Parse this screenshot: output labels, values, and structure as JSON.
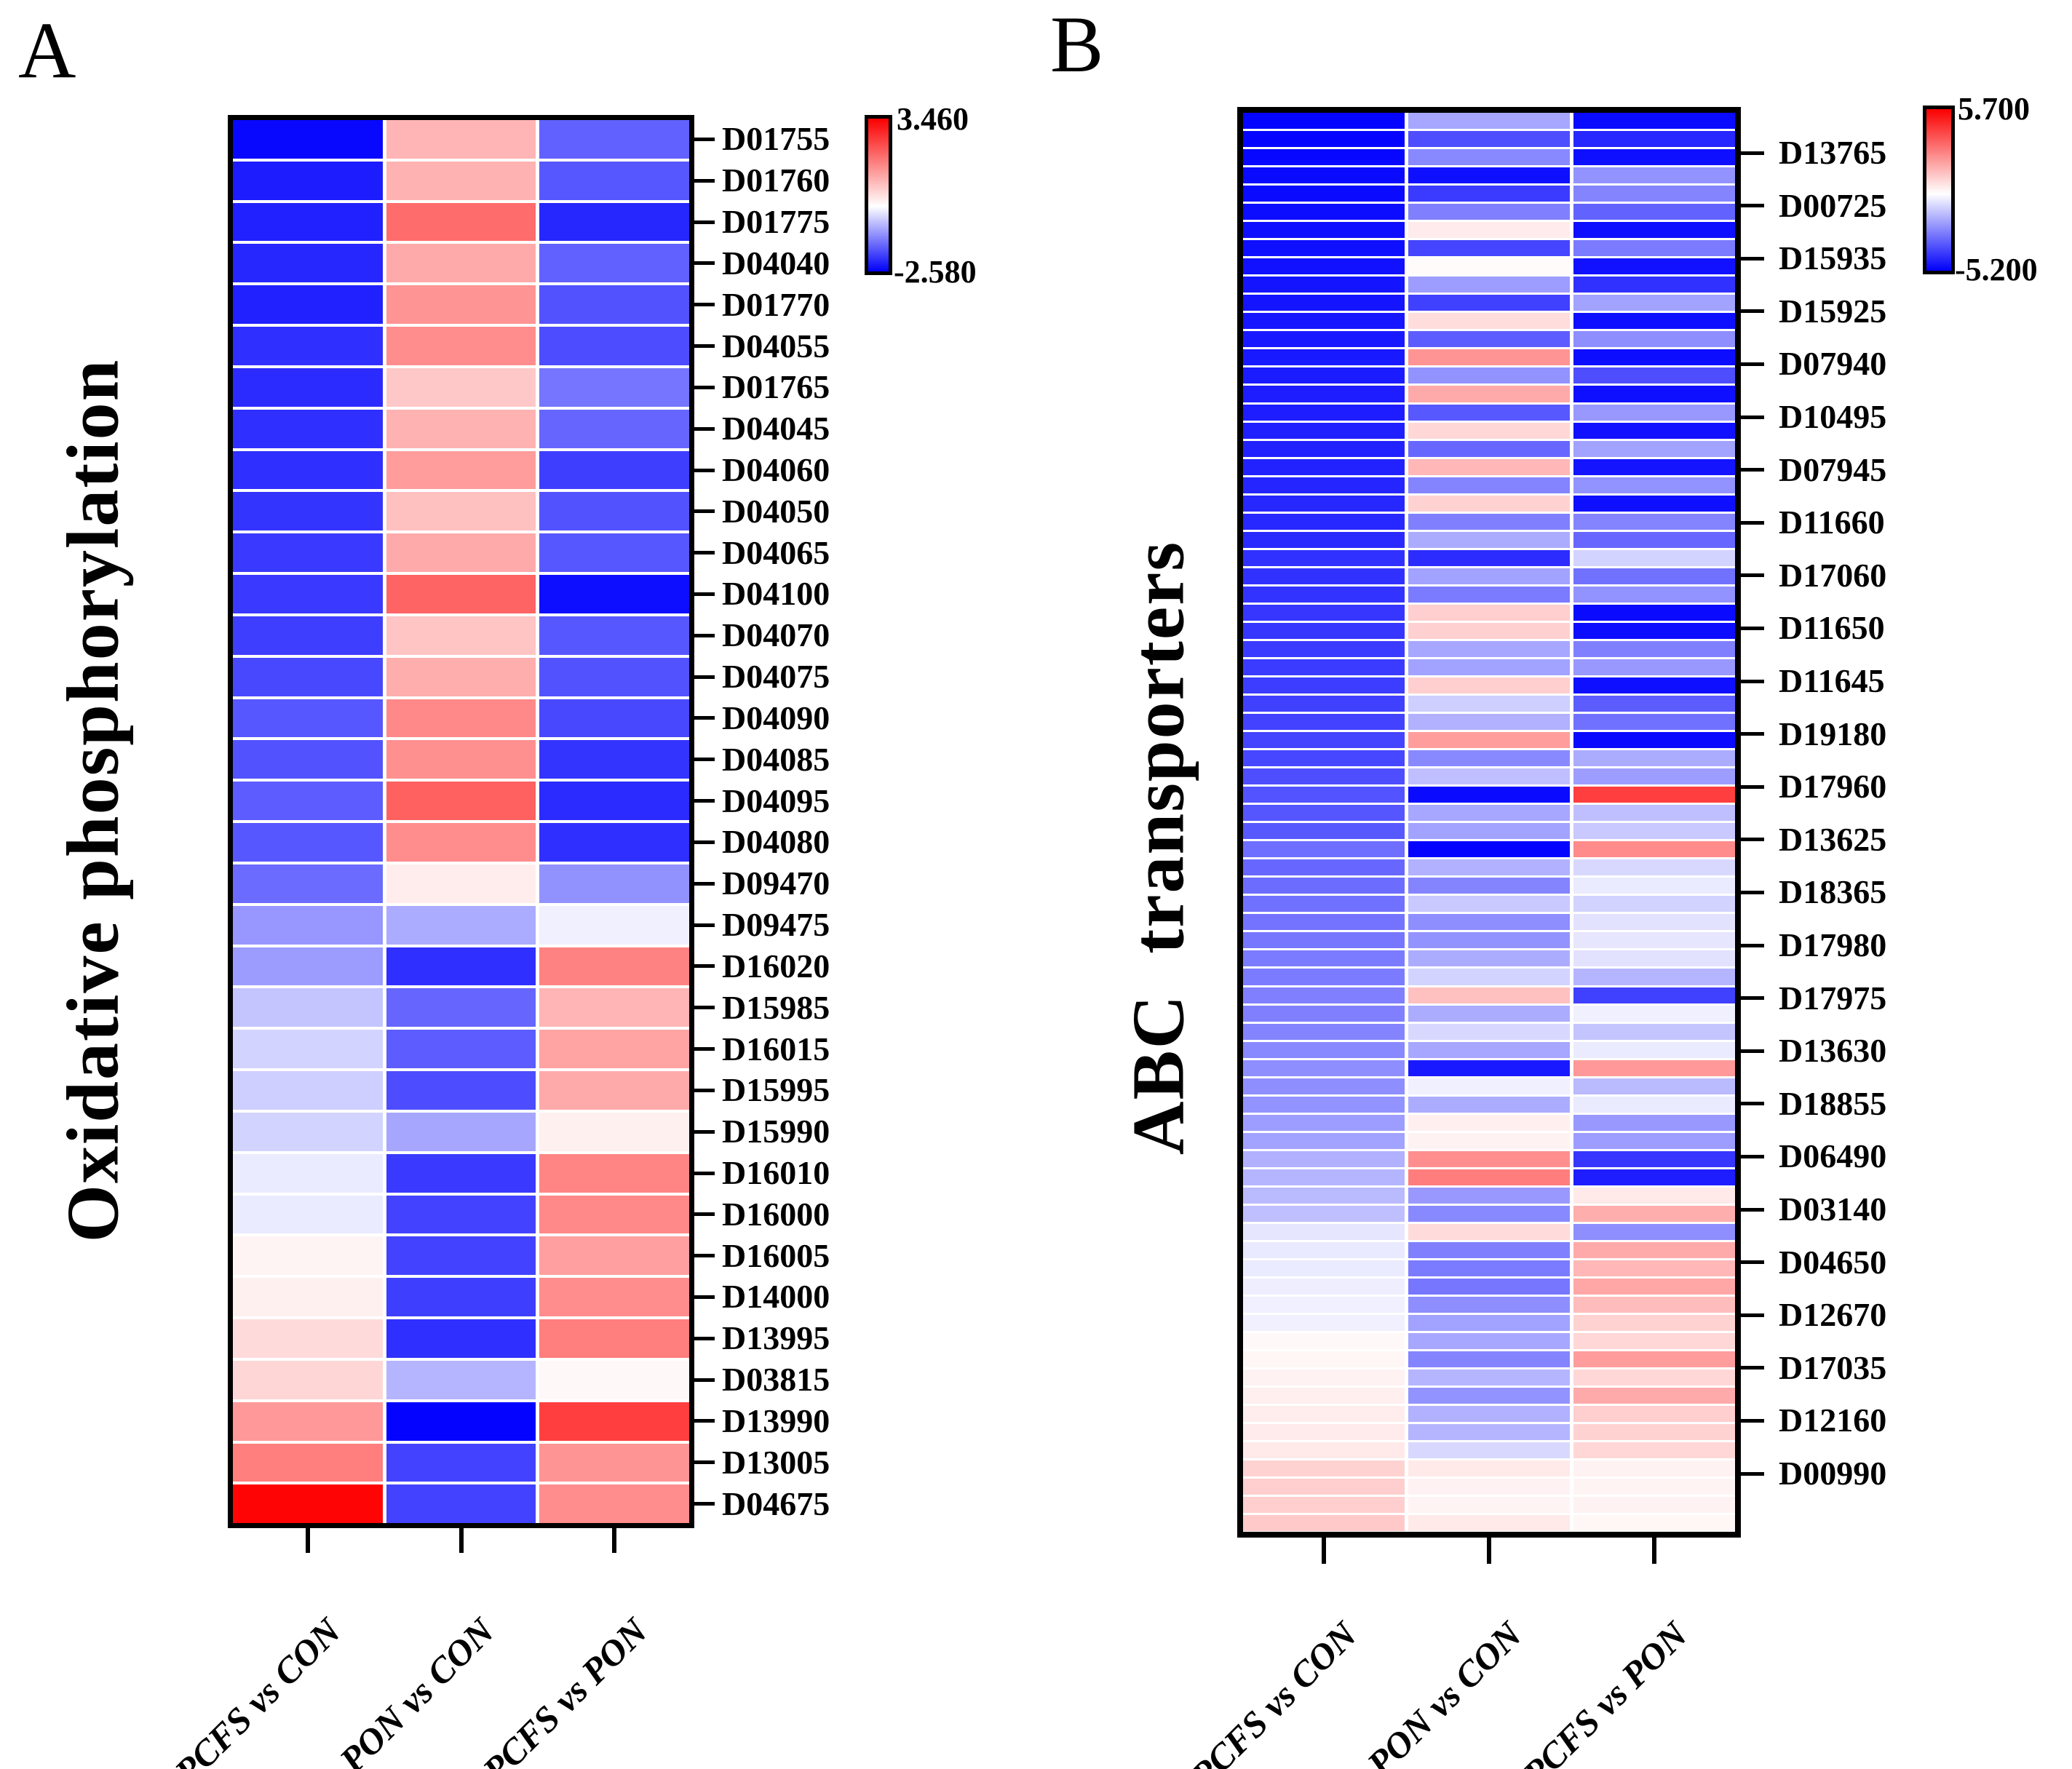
{
  "chart_data": [
    {
      "type": "heatmap",
      "panel_label": "A",
      "title": "Oxidative phosphorylation",
      "x_categories": [
        "PCFS vs CON",
        "PON vs CON",
        "PCFS vs PON"
      ],
      "y_categories": [
        "D01755",
        "D01760",
        "D01775",
        "D04040",
        "D01770",
        "D04055",
        "D01765",
        "D04045",
        "D04060",
        "D04050",
        "D04065",
        "D04100",
        "D04070",
        "D04075",
        "D04090",
        "D04085",
        "D04095",
        "D04080",
        "D09470",
        "D09475",
        "D16020",
        "D15985",
        "D16015",
        "D15995",
        "D15990",
        "D16010",
        "D16000",
        "D16005",
        "D14000",
        "D13995",
        "D03815",
        "D13990",
        "D13005",
        "D04675"
      ],
      "label_mode": "per-row",
      "values": [
        [
          -2.5,
          1.0,
          -1.6
        ],
        [
          -2.3,
          1.05,
          -1.7
        ],
        [
          -2.25,
          2.0,
          -2.2
        ],
        [
          -2.2,
          1.15,
          -1.6
        ],
        [
          -2.25,
          1.45,
          -1.75
        ],
        [
          -2.1,
          1.55,
          -1.8
        ],
        [
          -2.15,
          0.75,
          -1.4
        ],
        [
          -2.1,
          1.05,
          -1.55
        ],
        [
          -2.1,
          1.35,
          -1.95
        ],
        [
          -2.05,
          0.85,
          -1.75
        ],
        [
          -2.0,
          1.15,
          -1.7
        ],
        [
          -2.0,
          2.1,
          -2.45
        ],
        [
          -1.95,
          0.8,
          -1.7
        ],
        [
          -1.85,
          1.1,
          -1.75
        ],
        [
          -1.7,
          1.6,
          -1.85
        ],
        [
          -1.75,
          1.5,
          -2.05
        ],
        [
          -1.65,
          2.15,
          -2.15
        ],
        [
          -1.7,
          1.55,
          -2.1
        ],
        [
          -1.5,
          0.25,
          -1.1
        ],
        [
          -1.05,
          -0.85,
          -0.15
        ],
        [
          -1.0,
          -2.1,
          1.7
        ],
        [
          -0.6,
          -1.55,
          1.0
        ],
        [
          -0.45,
          -1.65,
          1.25
        ],
        [
          -0.5,
          -1.8,
          1.15
        ],
        [
          -0.45,
          -0.9,
          0.2
        ],
        [
          -0.2,
          -2.0,
          1.65
        ],
        [
          -0.2,
          -1.9,
          1.6
        ],
        [
          0.15,
          -1.9,
          1.3
        ],
        [
          0.2,
          -1.95,
          1.55
        ],
        [
          0.5,
          -2.1,
          1.75
        ],
        [
          0.55,
          -0.75,
          0.1
        ],
        [
          1.4,
          -2.55,
          2.6
        ],
        [
          1.75,
          -1.9,
          1.45
        ],
        [
          3.4,
          -1.9,
          1.55
        ]
      ],
      "colorbar": {
        "max": 3.46,
        "min": -2.58,
        "max_label": "3.460",
        "min_label": "-2.580",
        "top_color": "#fa0000",
        "mid_color": "#ffffff",
        "bottom_color": "#0000fa"
      },
      "legend_position": "top-right",
      "grid": false
    },
    {
      "type": "heatmap",
      "panel_label": "B",
      "title": "ABC  transporters",
      "x_categories": [
        "PCFS vs CON",
        "PON vs CON",
        "PCFS vs PON"
      ],
      "y_categories": [
        "D13765",
        "D00725",
        "D15935",
        "D15925",
        "D07940",
        "D10495",
        "D07945",
        "D11660",
        "D17060",
        "D11650",
        "D11645",
        "D19180",
        "D17960",
        "D13625",
        "D18365",
        "D17980",
        "D17975",
        "D13630",
        "D18855",
        "D06490",
        "D03140",
        "D04650",
        "D12670",
        "D17035",
        "D12160",
        "D00990"
      ],
      "label_mode": "sparse-every-3rd-row",
      "values": [
        [
          -5.1,
          -1.8,
          -5.0
        ],
        [
          -5.1,
          -3.6,
          -4.4
        ],
        [
          -5.05,
          -2.4,
          -4.9
        ],
        [
          -5.0,
          -4.9,
          -2.2
        ],
        [
          -5.0,
          -4.0,
          -2.5
        ],
        [
          -4.95,
          -2.6,
          -3.2
        ],
        [
          -4.9,
          0.45,
          -4.9
        ],
        [
          -4.9,
          -3.8,
          -2.7
        ],
        [
          -4.85,
          0.1,
          -4.85
        ],
        [
          -4.8,
          -2.0,
          -4.2
        ],
        [
          -4.8,
          -3.9,
          -1.9
        ],
        [
          -4.75,
          0.75,
          -4.9
        ],
        [
          -4.7,
          -3.3,
          -2.3
        ],
        [
          -4.7,
          2.4,
          -4.95
        ],
        [
          -4.65,
          -2.2,
          -3.6
        ],
        [
          -4.6,
          1.9,
          -4.9
        ],
        [
          -4.6,
          -3.4,
          -2.1
        ],
        [
          -4.55,
          0.9,
          -4.85
        ],
        [
          -4.5,
          -3.1,
          -1.9
        ],
        [
          -4.5,
          1.6,
          -4.8
        ],
        [
          -4.45,
          -2.5,
          -2.2
        ],
        [
          -4.4,
          1.0,
          -4.9
        ],
        [
          -4.4,
          -2.6,
          -2.5
        ],
        [
          -4.35,
          -1.7,
          -3.1
        ],
        [
          -4.2,
          -4.3,
          -0.9
        ],
        [
          -4.2,
          -1.9,
          -2.9
        ],
        [
          -4.15,
          -2.7,
          -2.2
        ],
        [
          -4.1,
          1.1,
          -5.0
        ],
        [
          -4.1,
          1.05,
          -4.95
        ],
        [
          -4.0,
          -1.8,
          -2.6
        ],
        [
          -4.0,
          -1.9,
          -2.1
        ],
        [
          -3.95,
          1.1,
          -4.9
        ],
        [
          -3.9,
          -1.0,
          -3.3
        ],
        [
          -3.85,
          -1.6,
          -2.9
        ],
        [
          -3.8,
          2.2,
          -5.0
        ],
        [
          -3.75,
          -2.4,
          -1.7
        ],
        [
          -3.6,
          -1.3,
          -2.0
        ],
        [
          -3.5,
          -5.0,
          4.3
        ],
        [
          -3.45,
          -1.8,
          -1.3
        ],
        [
          -3.4,
          -1.9,
          -1.1
        ],
        [
          -2.95,
          -5.1,
          2.6
        ],
        [
          -3.1,
          -1.6,
          -0.8
        ],
        [
          -3.0,
          -2.5,
          -0.4
        ],
        [
          -2.9,
          -1.1,
          -0.9
        ],
        [
          -2.85,
          -2.3,
          -0.6
        ],
        [
          -2.8,
          -2.2,
          -0.5
        ],
        [
          -2.7,
          -1.7,
          -0.6
        ],
        [
          -2.7,
          -0.9,
          -1.5
        ],
        [
          -2.6,
          1.4,
          -3.9
        ],
        [
          -2.6,
          -1.7,
          -0.3
        ],
        [
          -2.5,
          -0.8,
          -1.2
        ],
        [
          -2.4,
          -1.8,
          -0.4
        ],
        [
          -2.3,
          -4.7,
          2.3
        ],
        [
          -2.3,
          -0.3,
          -1.4
        ],
        [
          -2.2,
          -1.7,
          -0.4
        ],
        [
          -2.0,
          0.35,
          -2.1
        ],
        [
          -1.9,
          0.3,
          -2.0
        ],
        [
          -1.6,
          2.5,
          -4.1
        ],
        [
          -1.5,
          2.9,
          -4.6
        ],
        [
          -1.4,
          -2.1,
          0.5
        ],
        [
          -1.3,
          -2.4,
          1.8
        ],
        [
          -0.5,
          0.8,
          -2.3
        ],
        [
          -0.45,
          -2.6,
          1.9
        ],
        [
          -0.4,
          -2.7,
          1.6
        ],
        [
          -0.35,
          -2.8,
          2.0
        ],
        [
          -0.3,
          -2.3,
          1.5
        ],
        [
          -0.3,
          -1.9,
          1.0
        ],
        [
          0.15,
          -1.8,
          0.9
        ],
        [
          0.2,
          -2.5,
          2.2
        ],
        [
          0.3,
          -1.5,
          0.9
        ],
        [
          0.35,
          -2.2,
          1.9
        ],
        [
          0.4,
          -1.6,
          1.1
        ],
        [
          0.45,
          -1.5,
          1.0
        ],
        [
          0.5,
          -0.8,
          0.9
        ],
        [
          1.0,
          0.5,
          0.3
        ],
        [
          1.1,
          0.3,
          0.25
        ],
        [
          1.1,
          0.25,
          0.3
        ],
        [
          1.2,
          0.5,
          0.2
        ]
      ],
      "colorbar": {
        "max": 5.7,
        "min": -5.2,
        "max_label": "5.700",
        "min_label": "-5.200",
        "top_color": "#fa0000",
        "mid_color": "#ffffff",
        "bottom_color": "#0000fa"
      },
      "legend_position": "top-right",
      "grid": false
    }
  ]
}
